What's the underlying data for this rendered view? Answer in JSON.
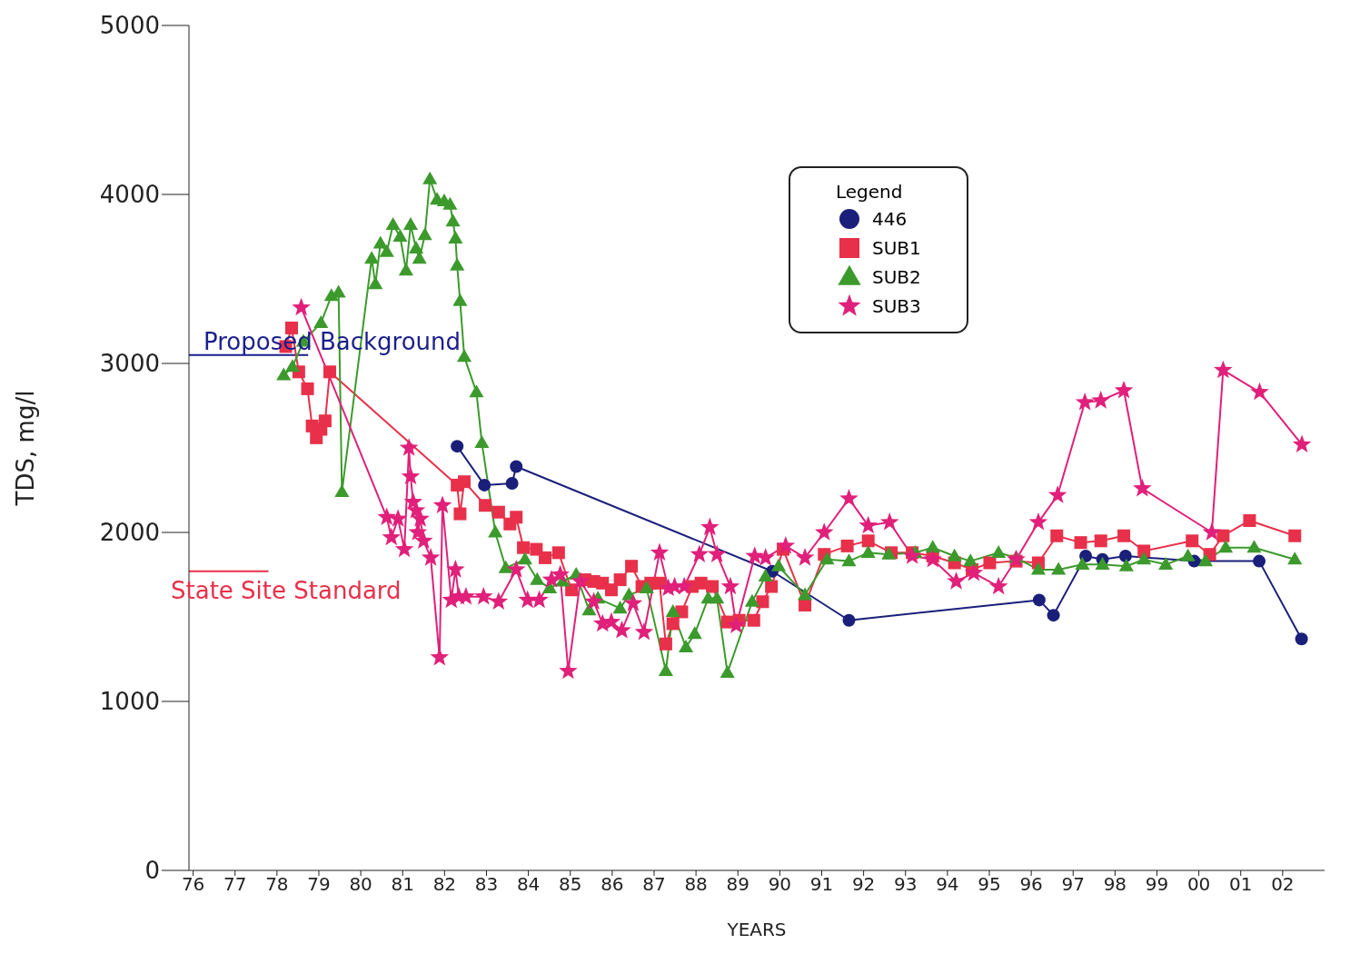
{
  "chart_data": {
    "type": "line",
    "xlabel": "YEARS",
    "ylabel": "TDS, mg/l",
    "legend_title": "Legend",
    "legend": "top right",
    "grid": false,
    "xlim": [
      1975.9,
      2003
    ],
    "xticks": [
      {
        "value": 1976,
        "label": "76"
      },
      {
        "value": 1977,
        "label": "77"
      },
      {
        "value": 1978,
        "label": "78"
      },
      {
        "value": 1979,
        "label": "79"
      },
      {
        "value": 1980,
        "label": "80"
      },
      {
        "value": 1981,
        "label": "81"
      },
      {
        "value": 1982,
        "label": "82"
      },
      {
        "value": 1983,
        "label": "83"
      },
      {
        "value": 1984,
        "label": "84"
      },
      {
        "value": 1985,
        "label": "85"
      },
      {
        "value": 1986,
        "label": "86"
      },
      {
        "value": 1987,
        "label": "87"
      },
      {
        "value": 1988,
        "label": "88"
      },
      {
        "value": 1989,
        "label": "89"
      },
      {
        "value": 1990,
        "label": "90"
      },
      {
        "value": 1991,
        "label": "91"
      },
      {
        "value": 1992,
        "label": "92"
      },
      {
        "value": 1993,
        "label": "93"
      },
      {
        "value": 1994,
        "label": "94"
      },
      {
        "value": 1995,
        "label": "95"
      },
      {
        "value": 1996,
        "label": "96"
      },
      {
        "value": 1997,
        "label": "97"
      },
      {
        "value": 1998,
        "label": "98"
      },
      {
        "value": 1999,
        "label": "99"
      },
      {
        "value": 2000,
        "label": "00"
      },
      {
        "value": 2001,
        "label": "01"
      },
      {
        "value": 2002,
        "label": "02"
      }
    ],
    "ylim": [
      0,
      5000
    ],
    "yticks": [
      0,
      1000,
      2000,
      3000,
      4000,
      5000
    ],
    "ref_lines": [
      {
        "axis": "y",
        "value": 3050,
        "label": "Proposed Background",
        "color": "#1a1f8c"
      },
      {
        "axis": "y",
        "value": 1770,
        "label": "State Site Standard",
        "color": "#e8304a"
      }
    ],
    "series": [
      {
        "name": "446",
        "color": "#1a1f7a",
        "marker": "circle",
        "x": [
          1982.3,
          1982.95,
          1983.61,
          1983.71,
          1989.82,
          1991.65,
          1996.19,
          1996.53,
          1997.3,
          1997.7,
          1998.25,
          1999.89,
          2001.44,
          2002.45
        ],
        "values": [
          2510,
          2280,
          2290,
          2390,
          1770,
          1480,
          1600,
          1510,
          1860,
          1840,
          1860,
          1830,
          1830,
          1370
        ]
      },
      {
        "name": "SUB1",
        "color": "#e8304a",
        "marker": "square",
        "x": [
          1978.21,
          1978.35,
          1978.52,
          1978.73,
          1978.84,
          1978.94,
          1979.05,
          1979.15,
          1979.26,
          1982.3,
          1982.37,
          1982.47,
          1982.97,
          1983.29,
          1983.56,
          1983.71,
          1983.88,
          1984.19,
          1984.4,
          1984.72,
          1985.03,
          1985.35,
          1985.56,
          1985.77,
          1985.98,
          1986.19,
          1986.46,
          1986.71,
          1986.92,
          1987.13,
          1987.28,
          1987.45,
          1987.66,
          1987.91,
          1988.12,
          1988.39,
          1988.75,
          1989.03,
          1989.38,
          1989.59,
          1989.8,
          1990.08,
          1990.6,
          1991.06,
          1991.61,
          1992.11,
          1992.66,
          1993.16,
          1993.65,
          1994.17,
          1994.59,
          1995.01,
          1995.64,
          1996.17,
          1996.61,
          1997.18,
          1997.66,
          1998.21,
          1998.69,
          1999.84,
          2000.26,
          2000.58,
          2001.21,
          2002.29
        ],
        "values": [
          3100,
          3210,
          2950,
          2850,
          2630,
          2560,
          2610,
          2660,
          2950,
          2280,
          2110,
          2300,
          2160,
          2120,
          2050,
          2090,
          1910,
          1900,
          1850,
          1880,
          1660,
          1720,
          1710,
          1700,
          1660,
          1720,
          1800,
          1680,
          1700,
          1700,
          1340,
          1460,
          1530,
          1680,
          1700,
          1680,
          1470,
          1480,
          1480,
          1590,
          1680,
          1900,
          1570,
          1870,
          1920,
          1950,
          1880,
          1880,
          1860,
          1820,
          1780,
          1820,
          1830,
          1820,
          1980,
          1940,
          1950,
          1980,
          1890,
          1950,
          1870,
          1980,
          2070,
          1980
        ]
      },
      {
        "name": "SUB2",
        "color": "#3c9a2c",
        "marker": "triangle",
        "x": [
          1978.16,
          1978.37,
          1978.63,
          1979.05,
          1979.3,
          1979.47,
          1979.55,
          1980.26,
          1980.35,
          1980.47,
          1980.62,
          1980.77,
          1980.94,
          1981.08,
          1981.19,
          1981.32,
          1981.4,
          1981.53,
          1981.65,
          1981.82,
          1981.99,
          1982.13,
          1982.2,
          1982.26,
          1982.3,
          1982.37,
          1982.47,
          1982.76,
          1982.89,
          1983.21,
          1983.46,
          1983.92,
          1984.21,
          1984.51,
          1984.82,
          1985.14,
          1985.45,
          1985.66,
          1986.19,
          1986.4,
          1986.82,
          1987.28,
          1987.45,
          1987.76,
          1987.97,
          1988.29,
          1988.5,
          1988.75,
          1989.34,
          1989.66,
          1989.97,
          1990.6,
          1991.13,
          1991.65,
          1992.11,
          1992.6,
          1993.23,
          1993.65,
          1994.17,
          1994.55,
          1995.22,
          1995.64,
          1996.17,
          1996.65,
          1997.22,
          1997.7,
          1998.27,
          1998.69,
          1999.21,
          1999.74,
          2000.16,
          2000.64,
          2001.32,
          2002.29
        ],
        "values": [
          2930,
          2980,
          3130,
          3240,
          3400,
          3420,
          2240,
          3620,
          3470,
          3710,
          3660,
          3820,
          3750,
          3550,
          3820,
          3680,
          3620,
          3760,
          4090,
          3970,
          3960,
          3940,
          3840,
          3740,
          3580,
          3370,
          3040,
          2830,
          2530,
          2000,
          1790,
          1840,
          1720,
          1670,
          1710,
          1750,
          1540,
          1610,
          1550,
          1630,
          1670,
          1180,
          1530,
          1320,
          1400,
          1610,
          1610,
          1170,
          1590,
          1740,
          1800,
          1630,
          1840,
          1830,
          1880,
          1870,
          1880,
          1910,
          1860,
          1830,
          1880,
          1850,
          1780,
          1780,
          1810,
          1810,
          1800,
          1840,
          1810,
          1860,
          1830,
          1910,
          1910,
          1840
        ]
      },
      {
        "name": "SUB3",
        "color": "#e0207a",
        "marker": "star",
        "x": [
          1978.58,
          1980.62,
          1980.73,
          1980.89,
          1981.04,
          1981.15,
          1981.19,
          1981.25,
          1981.32,
          1981.36,
          1981.42,
          1981.5,
          1981.67,
          1981.88,
          1981.95,
          1982.16,
          1982.26,
          1982.34,
          1982.51,
          1982.93,
          1983.29,
          1983.71,
          1983.98,
          1984.26,
          1984.55,
          1984.76,
          1984.95,
          1985.24,
          1985.56,
          1985.77,
          1985.98,
          1986.23,
          1986.5,
          1986.76,
          1987.13,
          1987.34,
          1987.49,
          1987.72,
          1988.08,
          1988.33,
          1988.5,
          1988.82,
          1988.96,
          1989.4,
          1989.66,
          1990.14,
          1990.6,
          1991.06,
          1991.65,
          1992.11,
          1992.62,
          1993.16,
          1993.65,
          1994.21,
          1994.63,
          1995.22,
          1995.64,
          1996.17,
          1996.63,
          1997.28,
          1997.66,
          1998.21,
          1998.65,
          2000.31,
          2000.58,
          2001.45,
          2002.46
        ],
        "values": [
          3330,
          2090,
          1970,
          2080,
          1900,
          2500,
          2330,
          2180,
          2130,
          2000,
          2080,
          1950,
          1850,
          1260,
          2160,
          1600,
          1780,
          1620,
          1620,
          1620,
          1590,
          1780,
          1600,
          1600,
          1720,
          1750,
          1180,
          1710,
          1590,
          1460,
          1470,
          1420,
          1580,
          1410,
          1880,
          1670,
          1680,
          1680,
          1870,
          2030,
          1870,
          1680,
          1450,
          1860,
          1850,
          1920,
          1850,
          2000,
          2200,
          2040,
          2060,
          1860,
          1840,
          1710,
          1760,
          1680,
          1840,
          2060,
          2220,
          2770,
          2780,
          2840,
          2260,
          2000,
          2960,
          2830,
          2520
        ]
      }
    ]
  }
}
